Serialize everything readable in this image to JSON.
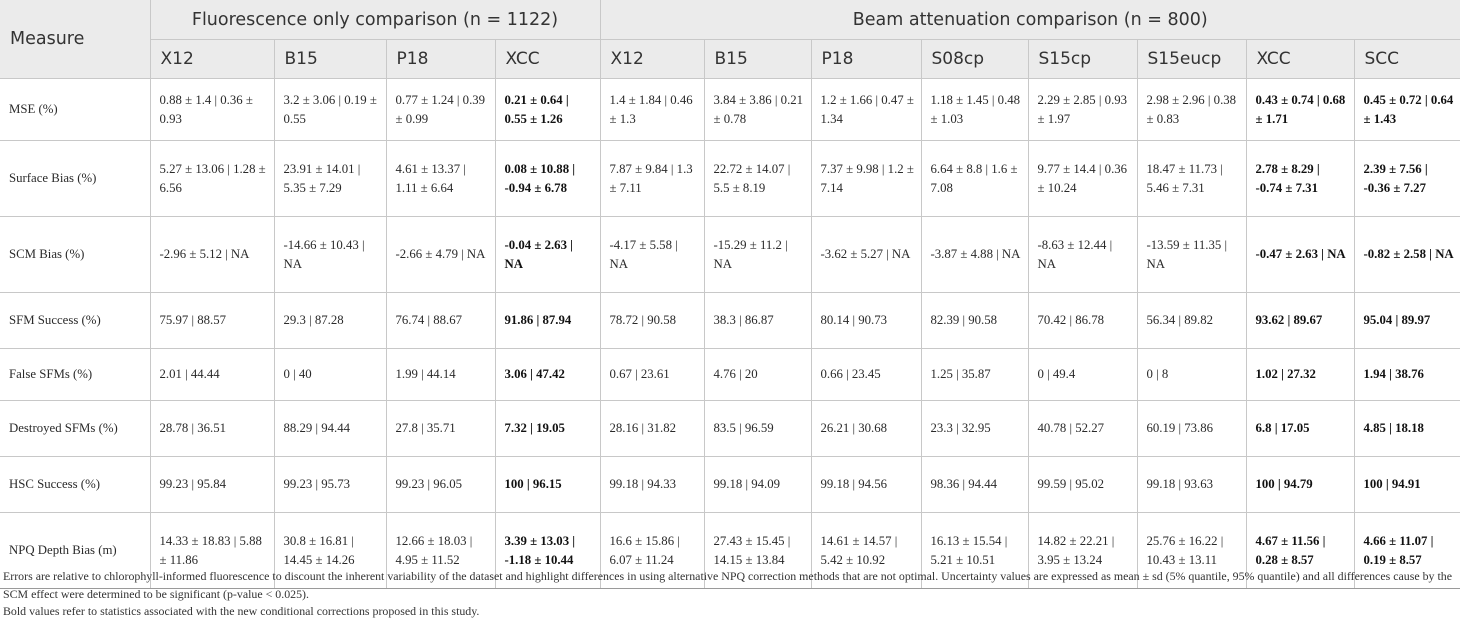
{
  "table": {
    "measure_header": "Measure",
    "groups": [
      {
        "label": "Fluorescence only comparison (n = 1122)",
        "span": 4
      },
      {
        "label": "Beam attenuation comparison (n = 800)",
        "span": 8
      }
    ],
    "columns": [
      "X12",
      "B15",
      "P18",
      "XCC",
      "X12",
      "B15",
      "P18",
      "S08cp",
      "S15cp",
      "S15eucp",
      "XCC",
      "SCC"
    ],
    "bold_columns": [
      3,
      10,
      11
    ],
    "rows": [
      {
        "measure": "MSE (%)",
        "cells": [
          "0.88 ± 1.4 | 0.36 ± 0.93",
          "3.2 ± 3.06 | 0.19 ± 0.55",
          "0.77 ± 1.24 | 0.39 ± 0.99",
          "0.21 ± 0.64 | 0.55 ± 1.26",
          "1.4 ± 1.84 | 0.46 ± 1.3",
          "3.84 ± 3.86 | 0.21 ± 0.78",
          "1.2 ± 1.66 | 0.47 ± 1.34",
          "1.18 ± 1.45 | 0.48 ± 1.03",
          "2.29 ± 2.85 | 0.93 ± 1.97",
          "2.98 ± 2.96 | 0.38 ± 0.83",
          "0.43 ± 0.74 | 0.68 ± 1.71",
          "0.45 ± 0.72 | 0.64 ± 1.43"
        ]
      },
      {
        "measure": "Surface Bias (%)",
        "cells": [
          "5.27 ± 13.06 | 1.28 ± 6.56",
          "23.91 ± 14.01 | 5.35 ± 7.29",
          "4.61 ± 13.37 | 1.11 ± 6.64",
          "0.08 ± 10.88 | -0.94 ± 6.78",
          "7.87 ± 9.84 | 1.3 ± 7.11",
          "22.72 ± 14.07 | 5.5 ± 8.19",
          "7.37 ± 9.98 | 1.2 ± 7.14",
          "6.64 ± 8.8 | 1.6 ± 7.08",
          "9.77 ± 14.4 | 0.36 ± 10.24",
          "18.47 ± 11.73 | 5.46 ± 7.31",
          "2.78 ± 8.29 | -0.74 ± 7.31",
          "2.39 ± 7.56 | -0.36 ± 7.27"
        ]
      },
      {
        "measure": "SCM Bias (%)",
        "cells": [
          "-2.96 ± 5.12 | NA",
          "-14.66 ± 10.43 | NA",
          "-2.66 ± 4.79 | NA",
          "-0.04 ± 2.63 | NA",
          "-4.17 ± 5.58 | NA",
          "-15.29 ± 11.2 | NA",
          "-3.62 ± 5.27 | NA",
          "-3.87 ± 4.88 | NA",
          "-8.63 ± 12.44 | NA",
          "-13.59 ± 11.35 | NA",
          "-0.47 ± 2.63 | NA",
          "-0.82 ± 2.58 | NA"
        ]
      },
      {
        "measure": "SFM Success (%)",
        "cells": [
          "75.97 | 88.57",
          "29.3 | 87.28",
          "76.74 | 88.67",
          "91.86 | 87.94",
          "78.72 | 90.58",
          "38.3 | 86.87",
          "80.14 | 90.73",
          "82.39 | 90.58",
          "70.42 | 86.78",
          "56.34 | 89.82",
          "93.62 | 89.67",
          "95.04 | 89.97"
        ]
      },
      {
        "measure": "False SFMs (%)",
        "cells": [
          "2.01 | 44.44",
          "0 | 40",
          "1.99 | 44.14",
          "3.06 | 47.42",
          "0.67 | 23.61",
          "4.76 | 20",
          "0.66 | 23.45",
          "1.25 | 35.87",
          "0 | 49.4",
          "0 | 8",
          "1.02 | 27.32",
          "1.94 | 38.76"
        ]
      },
      {
        "measure": "Destroyed SFMs (%)",
        "cells": [
          "28.78 | 36.51",
          "88.29 | 94.44",
          "27.8 | 35.71",
          "7.32 | 19.05",
          "28.16 | 31.82",
          "83.5 | 96.59",
          "26.21 | 30.68",
          "23.3 | 32.95",
          "40.78 | 52.27",
          "60.19 | 73.86",
          "6.8 | 17.05",
          "4.85 | 18.18"
        ]
      },
      {
        "measure": "HSC Success (%)",
        "cells": [
          "99.23 | 95.84",
          "99.23 | 95.73",
          "99.23 | 96.05",
          "100 | 96.15",
          "99.18 | 94.33",
          "99.18 | 94.09",
          "99.18 | 94.56",
          "98.36 | 94.44",
          "99.59 | 95.02",
          "99.18 | 93.63",
          "100 | 94.79",
          "100 | 94.91"
        ]
      },
      {
        "measure": "NPQ Depth Bias (m)",
        "cells": [
          "14.33 ± 18.83 | 5.88 ± 11.86",
          "30.8 ± 16.81 | 14.45 ± 14.26",
          "12.66 ± 18.03 | 4.95 ± 11.52",
          "3.39 ± 13.03 | -1.18 ± 10.44",
          "16.6 ± 15.86 | 6.07 ± 11.24",
          "27.43 ± 15.45 | 14.15 ± 13.84",
          "14.61 ± 14.57 | 5.42 ± 10.92",
          "16.13 ± 15.54 | 5.21 ± 10.51",
          "14.82 ± 22.21 | 3.95 ± 13.24",
          "25.76 ± 16.22 | 10.43 ± 13.11",
          "4.67 ± 11.56 | 0.28 ± 8.57",
          "4.66 ± 11.07 | 0.19 ± 8.57"
        ]
      }
    ]
  },
  "footnotes": [
    "Errors are relative to chlorophyll-informed fluorescence to discount the inherent variability of the dataset and highlight differences in using alternative NPQ correction methods that are not optimal. Uncertainty values are expressed as mean ± sd (5% quantile, 95% quantile) and all differences cause by the SCM effect were determined to be significant (p-value < 0.025).",
    "Bold values refer to statistics associated with the new conditional corrections proposed in this study."
  ]
}
